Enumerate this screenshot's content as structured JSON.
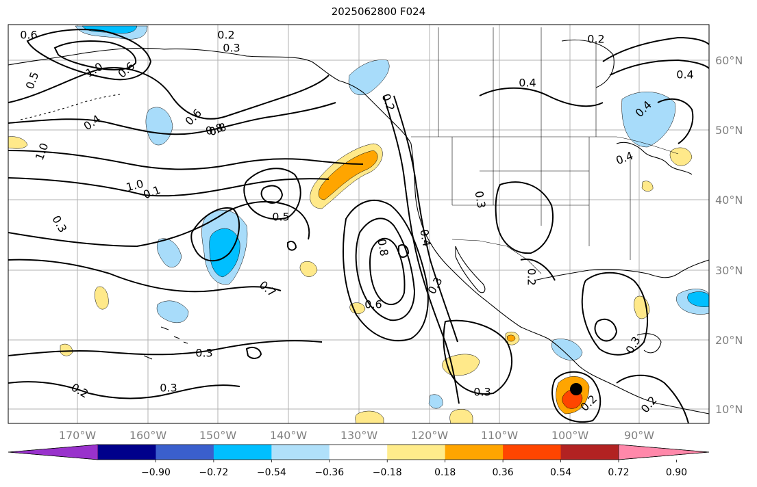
{
  "title": "2025062800 F024",
  "map": {
    "lon_labels": [
      "170°W",
      "160°W",
      "150°W",
      "140°W",
      "130°W",
      "120°W",
      "110°W",
      "100°W",
      "90°W"
    ],
    "lat_labels": [
      "60°N",
      "50°N",
      "40°N",
      "30°N",
      "20°N",
      "10°N"
    ],
    "contour_labels": [
      "0.6",
      "1.0",
      "0.6",
      "0.5",
      "0.4",
      "0.6",
      "0.8",
      "1.0",
      "1.0",
      "0.3",
      "0.2",
      "0.3",
      "0.2",
      "0.4",
      "0.5",
      "0.7",
      "0.8",
      "0.6",
      "0.4",
      "0.3",
      "0.4",
      "0.2",
      "0.2",
      "0.8",
      "0.4",
      "0.3",
      "0.3",
      "0.3",
      "0.2",
      "0.3",
      "0.2",
      "0.2",
      "0.1",
      "0.4",
      "0.3"
    ],
    "colors": {
      "land_line": "#000000",
      "grid": "#b0b0b0",
      "neg_light": "#a8dcfa",
      "neg_mid": "#00bfff",
      "pos_light": "#ffe98a",
      "pos_mid": "#ffa500",
      "pos_strong": "#ff4500"
    }
  },
  "colorbar": {
    "ticks": [
      "−0.90",
      "−0.72",
      "−0.54",
      "−0.36",
      "−0.18",
      "0.18",
      "0.36",
      "0.54",
      "0.72",
      "0.90"
    ],
    "colors": [
      "#9932cc",
      "#00008b",
      "#3a5fcd",
      "#00bfff",
      "#b0e0fa",
      "#ffffff",
      "#ffec8b",
      "#ffa500",
      "#ff4500",
      "#b22222",
      "#ff88aa"
    ]
  }
}
